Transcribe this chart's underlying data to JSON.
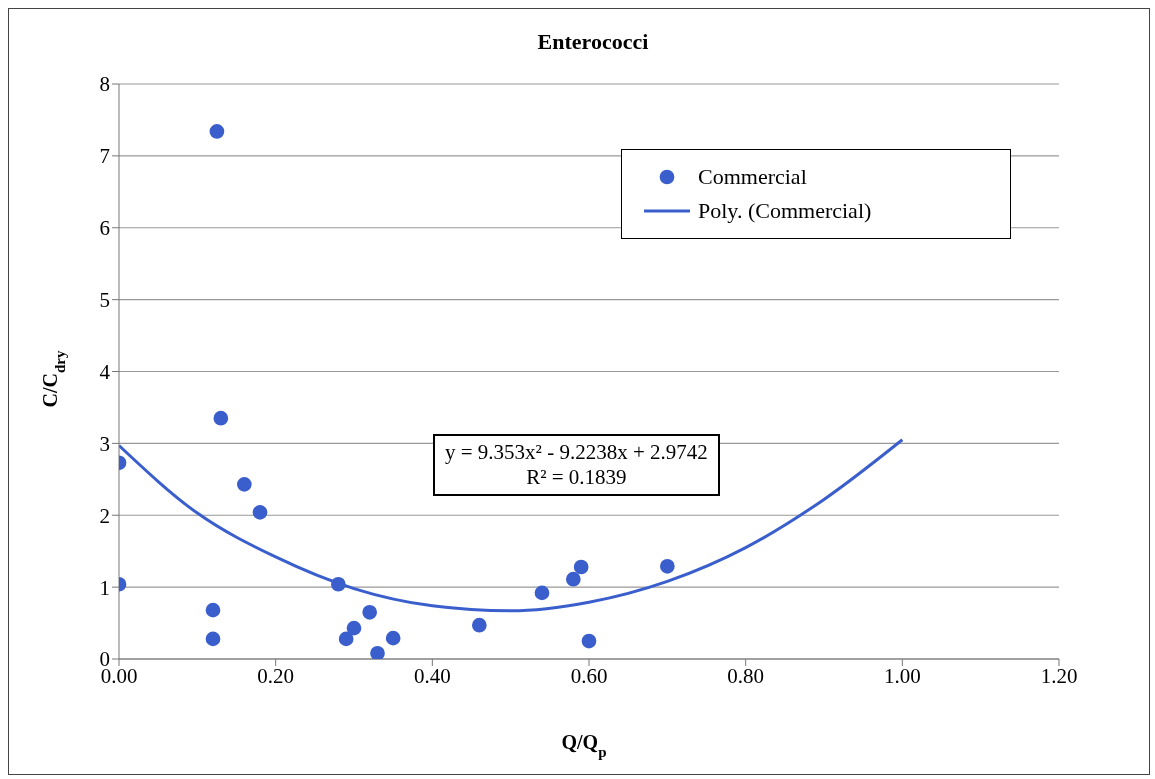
{
  "chart_data": {
    "type": "scatter",
    "title": "Enterococci",
    "xlabel": "Q/Q$_{p}$",
    "ylabel": "C/C$_{dry}$",
    "xlim": [
      0,
      1.2
    ],
    "xticks": [
      {
        "value": 0,
        "label": "0.00"
      },
      {
        "value": 0.2,
        "label": "0.20"
      },
      {
        "value": 0.4,
        "label": "0.40"
      },
      {
        "value": 0.6,
        "label": "0.60"
      },
      {
        "value": 0.8,
        "label": "0.80"
      },
      {
        "value": 1,
        "label": "1.00"
      },
      {
        "value": 1.2,
        "label": "1.20"
      }
    ],
    "ylim": [
      0,
      8
    ],
    "yticks": [
      0,
      1,
      2,
      3,
      4,
      5,
      6,
      7,
      8
    ],
    "grid": "y",
    "legend": "top right",
    "series": [
      {
        "name": "Commercial",
        "marker": "circle",
        "color": "#3a5fcd",
        "x": [
          0,
          0,
          0.125,
          0.13,
          0.12,
          0.12,
          0.16,
          0.18,
          0.28,
          0.29,
          0.3,
          0.32,
          0.33,
          0.35,
          0.46,
          0.54,
          0.58,
          0.59,
          0.6,
          0.7
        ],
        "values": [
          1.04,
          2.73,
          7.34,
          3.35,
          0.68,
          0.28,
          2.43,
          2.04,
          1.04,
          0.28,
          0.43,
          0.65,
          0.08,
          0.29,
          0.47,
          0.92,
          1.11,
          1.28,
          0.25,
          1.29
        ]
      },
      {
        "name": "Poly. (Commercial)",
        "type": "line",
        "color": "#3a5fcd",
        "x": [
          0,
          0.1,
          0.2,
          0.3,
          0.4,
          0.5,
          0.6,
          0.7,
          0.8,
          0.9,
          1.0
        ],
        "values": [
          2.97,
          2.03,
          1.42,
          0.98,
          0.74,
          0.67,
          0.79,
          1.08,
          1.55,
          2.22,
          3.05
        ]
      }
    ],
    "annotations": [
      "y = 9.353x² - 9.2238x + 2.9742",
      "R² = 0.1839"
    ]
  }
}
